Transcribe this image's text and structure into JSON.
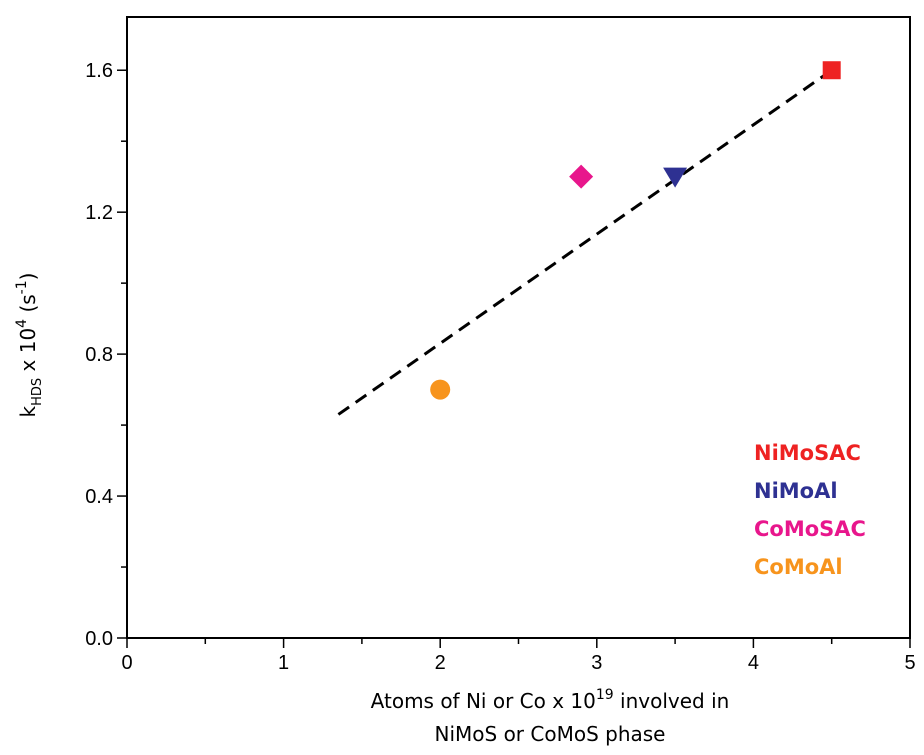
{
  "chart_data": {
    "type": "scatter",
    "xlim": [
      0,
      5
    ],
    "ylim": [
      0,
      1.75
    ],
    "x_ticks": [
      "0",
      "1",
      "2",
      "3",
      "4",
      "5"
    ],
    "y_ticks": [
      "0.0",
      "0.4",
      "0.8",
      "1.2",
      "1.6"
    ],
    "xlabel": {
      "pre": "Atoms of Ni or Co x 10",
      "sup": "19",
      "post": " involved in",
      "line2": "NiMoS or CoMoS phase"
    },
    "ylabel": {
      "k": "k",
      "sub": "HDS",
      "mid": " x 10",
      "sup1": "4",
      "unit_open": " (s",
      "sup2": "-1",
      "unit_close": ")"
    },
    "grid": false,
    "legend_position": "bottom-right",
    "series": [
      {
        "name": "NiMoSAC",
        "marker": "square",
        "color": "#ee2222",
        "x": 4.5,
        "y": 1.6
      },
      {
        "name": "NiMoAl",
        "marker": "triangle-down",
        "color": "#2e3192",
        "x": 3.5,
        "y": 1.3
      },
      {
        "name": "CoMoSAC",
        "marker": "diamond",
        "color": "#e8168c",
        "x": 2.9,
        "y": 1.3
      },
      {
        "name": "CoMoAl",
        "marker": "circle",
        "color": "#f7941d",
        "x": 2.0,
        "y": 0.7
      }
    ],
    "fit_line": {
      "style": "dashed",
      "color": "#000000",
      "x": [
        1.35,
        4.5
      ],
      "y": [
        0.63,
        1.6
      ]
    }
  }
}
